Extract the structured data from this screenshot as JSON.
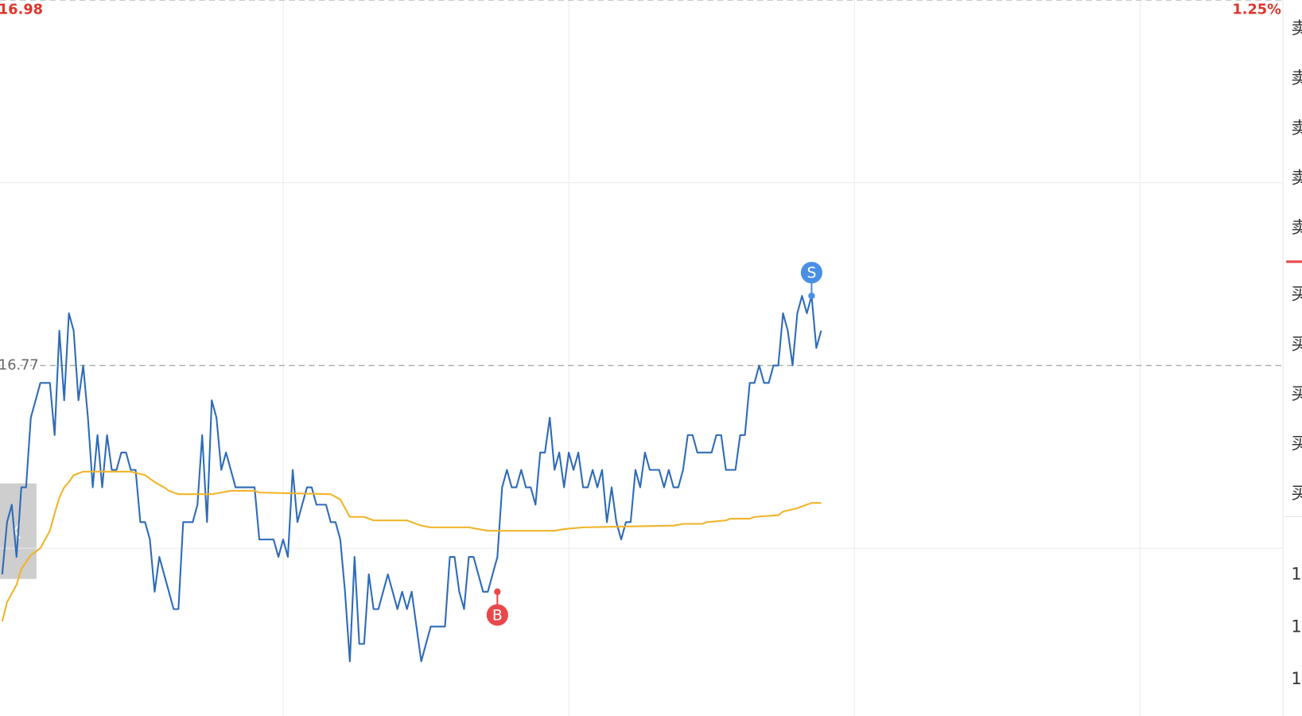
{
  "chart_data": {
    "type": "line",
    "ylim": [
      16.56,
      16.98
    ],
    "yticks": [
      16.98,
      16.77
    ],
    "ygrid": [
      16.875,
      16.665
    ],
    "y2lim": [
      -1.25,
      1.25
    ],
    "y2ticks": [
      {
        "value": 1.25,
        "label": "1.25%"
      }
    ],
    "xlim": [
      0,
      270
    ],
    "xgrid": [
      60,
      120,
      180,
      240
    ],
    "series": [
      {
        "color": "#2e6bb8",
        "x": [
          1,
          2,
          3,
          4,
          5,
          6,
          7,
          9,
          11,
          12,
          13,
          14,
          15,
          16,
          17,
          18,
          19,
          20,
          21,
          22,
          23,
          24,
          25,
          26,
          27,
          28,
          29,
          30,
          31,
          32,
          33,
          34,
          37,
          38,
          39,
          41,
          42,
          43,
          44,
          45,
          46,
          47,
          48,
          50,
          54,
          55,
          58,
          59,
          60,
          61,
          62,
          63,
          64,
          65,
          66,
          67,
          69,
          70,
          71,
          72,
          73,
          74,
          75,
          76,
          77,
          78,
          79,
          80,
          81,
          82,
          84,
          85,
          86,
          87,
          89,
          91,
          94,
          95,
          96,
          97,
          98,
          99,
          100,
          102,
          103,
          105,
          106,
          107,
          108,
          109,
          110,
          111,
          112,
          113,
          114,
          115,
          116,
          117,
          118,
          119,
          120,
          121,
          122,
          123,
          124,
          125,
          126,
          127,
          128,
          129,
          130,
          131,
          132,
          133,
          134,
          135,
          136,
          137,
          139,
          140,
          141,
          142,
          143,
          144,
          145,
          146,
          147,
          150,
          151,
          152,
          153,
          155,
          156,
          157,
          158,
          159,
          160,
          161,
          162,
          163,
          164,
          165,
          166,
          167,
          168,
          169,
          170,
          171,
          172,
          173
        ],
        "values": [
          16.65,
          16.68,
          16.69,
          16.66,
          16.7,
          16.7,
          16.74,
          16.76,
          16.76,
          16.73,
          16.79,
          16.75,
          16.8,
          16.79,
          16.75,
          16.77,
          16.74,
          16.7,
          16.73,
          16.7,
          16.73,
          16.71,
          16.71,
          16.72,
          16.72,
          16.71,
          16.71,
          16.68,
          16.68,
          16.67,
          16.64,
          16.66,
          16.63,
          16.63,
          16.68,
          16.68,
          16.69,
          16.73,
          16.68,
          16.75,
          16.74,
          16.71,
          16.72,
          16.7,
          16.7,
          16.67,
          16.67,
          16.66,
          16.67,
          16.66,
          16.71,
          16.68,
          16.69,
          16.7,
          16.7,
          16.69,
          16.69,
          16.68,
          16.68,
          16.67,
          16.64,
          16.6,
          16.66,
          16.61,
          16.61,
          16.65,
          16.63,
          16.63,
          16.64,
          16.65,
          16.63,
          16.64,
          16.63,
          16.64,
          16.6,
          16.62,
          16.62,
          16.66,
          16.66,
          16.64,
          16.63,
          16.66,
          16.66,
          16.64,
          16.64,
          16.66,
          16.7,
          16.71,
          16.7,
          16.7,
          16.71,
          16.7,
          16.7,
          16.69,
          16.72,
          16.72,
          16.74,
          16.71,
          16.72,
          16.7,
          16.72,
          16.71,
          16.72,
          16.7,
          16.7,
          16.71,
          16.7,
          16.71,
          16.68,
          16.7,
          16.68,
          16.67,
          16.68,
          16.68,
          16.71,
          16.7,
          16.72,
          16.71,
          16.71,
          16.7,
          16.71,
          16.7,
          16.7,
          16.71,
          16.73,
          16.73,
          16.72,
          16.72,
          16.73,
          16.73,
          16.71,
          16.71,
          16.73,
          16.73,
          16.76,
          16.76,
          16.77,
          16.76,
          16.76,
          16.77,
          16.77,
          16.8,
          16.79,
          16.77,
          16.8,
          16.81,
          16.8,
          16.81,
          16.78,
          16.79
        ]
      },
      {
        "color": "#f0b429",
        "x": [
          1,
          2,
          4,
          5,
          7,
          9,
          11,
          12,
          13,
          14,
          15,
          16,
          18,
          20,
          28,
          31,
          33,
          35,
          36,
          38,
          45,
          47,
          49,
          54,
          55,
          70,
          72,
          74,
          77,
          79,
          86,
          89,
          91,
          99,
          101,
          103,
          105,
          109,
          110,
          117,
          119,
          123,
          142,
          144,
          148,
          149,
          153,
          154,
          158,
          159,
          164,
          165,
          168,
          171,
          173
        ],
        "values": [
          16.623,
          16.634,
          16.644,
          16.653,
          16.661,
          16.665,
          16.675,
          16.685,
          16.694,
          16.7,
          16.703,
          16.707,
          16.709,
          16.709,
          16.709,
          16.707,
          16.703,
          16.7,
          16.698,
          16.696,
          16.696,
          16.697,
          16.698,
          16.698,
          16.697,
          16.696,
          16.693,
          16.683,
          16.683,
          16.681,
          16.681,
          16.678,
          16.677,
          16.677,
          16.676,
          16.675,
          16.675,
          16.675,
          16.675,
          16.675,
          16.676,
          16.677,
          16.678,
          16.679,
          16.679,
          16.68,
          16.681,
          16.682,
          16.682,
          16.683,
          16.684,
          16.686,
          16.688,
          16.691,
          16.691
        ]
      }
    ],
    "markers": [
      {
        "label": "B",
        "x": 105,
        "value": 16.64,
        "color": "#e8474c"
      },
      {
        "label": "S",
        "x": 171,
        "value": 16.81,
        "color": "#4a8fe6"
      }
    ],
    "order_book": {
      "sell": [
        "卖",
        "卖",
        "卖",
        "卖",
        "卖"
      ],
      "buy": [
        "买",
        "买",
        "买",
        "买",
        "买"
      ],
      "trades": [
        "1",
        "1",
        "1"
      ]
    }
  }
}
